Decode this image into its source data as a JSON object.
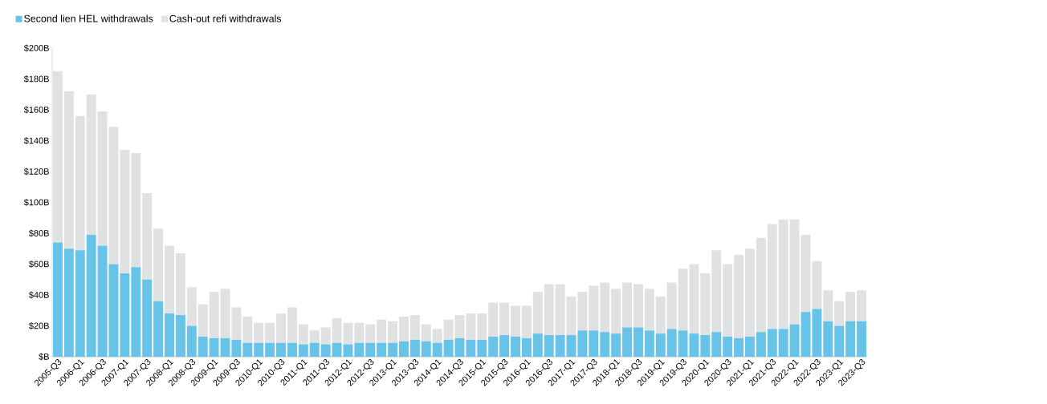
{
  "chart_data": {
    "type": "bar",
    "stacked": true,
    "legend": "top left",
    "categories": [
      "2005-Q3",
      null,
      "2006-Q1",
      null,
      "2006-Q3",
      null,
      "2007-Q1",
      null,
      "2007-Q3",
      null,
      "2008-Q1",
      null,
      "2008-Q3",
      null,
      "2009-Q1",
      null,
      "2009-Q3",
      null,
      "2010-Q1",
      null,
      "2010-Q3",
      null,
      "2011-Q1",
      null,
      "2011-Q3",
      null,
      "2012-Q1",
      null,
      "2012-Q3",
      null,
      "2013-Q1",
      null,
      "2013-Q3",
      null,
      "2014-Q1",
      null,
      "2014-Q3",
      null,
      "2015-Q1",
      null,
      "2015-Q3",
      null,
      "2016-Q1",
      null,
      "2016-Q3",
      null,
      "2017-Q1",
      null,
      "2017-Q3",
      null,
      "2018-Q1",
      null,
      "2018-Q3",
      null,
      "2019-Q1",
      null,
      "2019-Q3",
      null,
      "2020-Q1",
      null,
      "2020-Q3",
      null,
      "2021-Q1",
      null,
      "2021-Q3",
      null,
      "2022-Q1",
      null,
      "2022-Q3",
      null,
      "2023-Q1",
      null,
      "2023-Q3"
    ],
    "series": [
      {
        "name": "Second lien HEL withdrawals",
        "color": "#68c3e8",
        "values": [
          74,
          70,
          69,
          79,
          72,
          60,
          54,
          58,
          50,
          36,
          28,
          27,
          20,
          13,
          12,
          12,
          11,
          9,
          9,
          9,
          9,
          9,
          8,
          9,
          8,
          9,
          8,
          9,
          9,
          9,
          9,
          10,
          11,
          10,
          9,
          11,
          12,
          11,
          11,
          13,
          14,
          13,
          12,
          15,
          14,
          14,
          14,
          17,
          17,
          16,
          15,
          19,
          19,
          17,
          15,
          18,
          17,
          15,
          14,
          16,
          13,
          12,
          13,
          16,
          18,
          18,
          21,
          29,
          31,
          23,
          20,
          23,
          23
        ]
      },
      {
        "name": "Cash-out refi withdrawals",
        "color": "#e0e1e3",
        "values": [
          111,
          102,
          87,
          91,
          87,
          89,
          80,
          74,
          56,
          47,
          44,
          40,
          25,
          21,
          30,
          32,
          21,
          17,
          13,
          13,
          19,
          23,
          13,
          8,
          11,
          16,
          14,
          13,
          12,
          15,
          14,
          16,
          16,
          11,
          9,
          13,
          15,
          17,
          17,
          22,
          21,
          20,
          21,
          27,
          33,
          33,
          25,
          25,
          29,
          32,
          29,
          29,
          28,
          27,
          24,
          30,
          40,
          45,
          40,
          53,
          47,
          54,
          57,
          61,
          68,
          71,
          68,
          50,
          31,
          20,
          16,
          19,
          20
        ]
      }
    ],
    "ylim": [
      0,
      200
    ],
    "yticks": [
      {
        "value": 0,
        "label": "$B"
      },
      {
        "value": 20,
        "label": "$20B"
      },
      {
        "value": 40,
        "label": "$40B"
      },
      {
        "value": 60,
        "label": "$60B"
      },
      {
        "value": 80,
        "label": "$80B"
      },
      {
        "value": 100,
        "label": "$100B"
      },
      {
        "value": 120,
        "label": "$120B"
      },
      {
        "value": 140,
        "label": "$140B"
      },
      {
        "value": 160,
        "label": "$160B"
      },
      {
        "value": 180,
        "label": "$180B"
      },
      {
        "value": 200,
        "label": "$200B"
      }
    ]
  }
}
